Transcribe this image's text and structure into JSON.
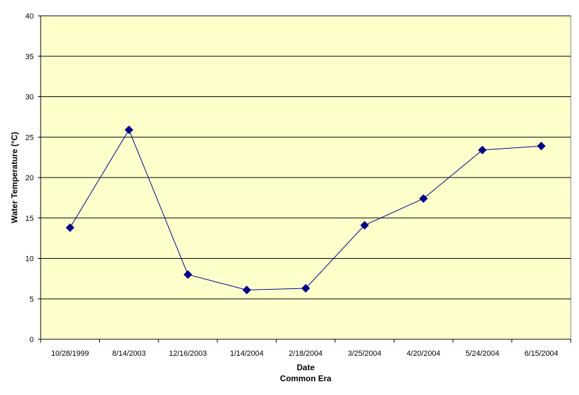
{
  "chart_data": {
    "type": "line",
    "title": "",
    "xlabel": "Date",
    "xlabel_sub": "Common Era",
    "ylabel": "Water Temperature (°C)",
    "ylim": [
      0,
      40
    ],
    "yticks": [
      0,
      5,
      10,
      15,
      20,
      25,
      30,
      35,
      40
    ],
    "grid": true,
    "legend": "none",
    "categories": [
      "10/28/1999",
      "8/14/2003",
      "12/16/2003",
      "1/14/2004",
      "2/18/2004",
      "3/25/2004",
      "4/20/2004",
      "5/24/2004",
      "6/15/2004"
    ],
    "series": [
      {
        "values": [
          13.8,
          25.9,
          8.0,
          6.1,
          6.3,
          14.1,
          17.4,
          23.4,
          23.9
        ],
        "color": "#00008b",
        "marker": "diamond"
      }
    ],
    "colors": {
      "plot_background": "#ffffcc",
      "grid": "#000000",
      "line": "#00008b"
    }
  }
}
